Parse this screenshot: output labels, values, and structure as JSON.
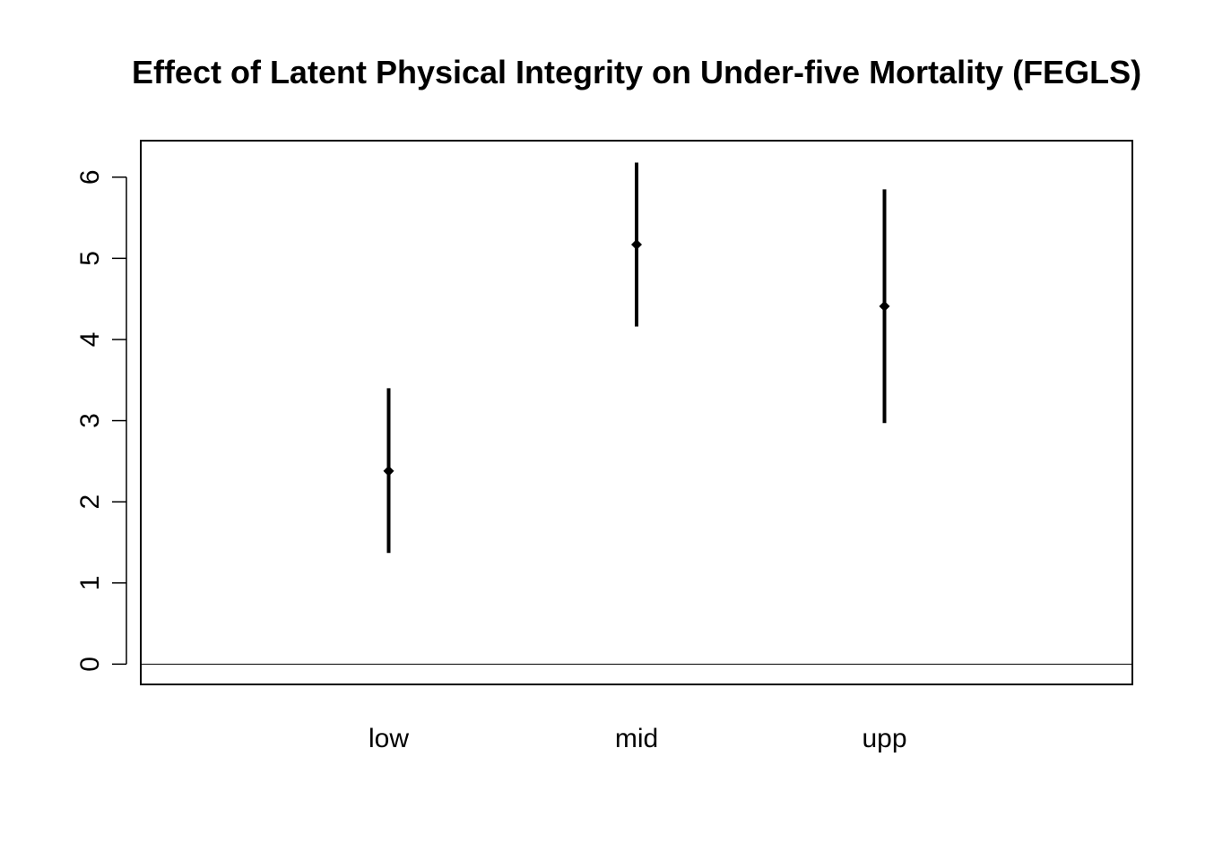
{
  "chart_data": {
    "type": "scatter",
    "title": "Effect of Latent Physical Integrity on Under-five Mortality (FEGLS)",
    "xlabel": "",
    "ylabel": "",
    "categories": [
      "low",
      "mid",
      "upp"
    ],
    "series": [
      {
        "values": [
          2.38,
          5.17,
          4.41
        ],
        "lower": [
          1.37,
          4.16,
          2.97
        ],
        "upper": [
          3.4,
          6.18,
          5.85
        ]
      }
    ],
    "ylim": [
      -0.25,
      6.45
    ],
    "yticks": [
      0,
      1,
      2,
      3,
      4,
      5,
      6
    ],
    "reference_line": 0,
    "grid": false,
    "legend": "none",
    "colors": {
      "marks": "#000000",
      "background": "#ffffff"
    }
  }
}
